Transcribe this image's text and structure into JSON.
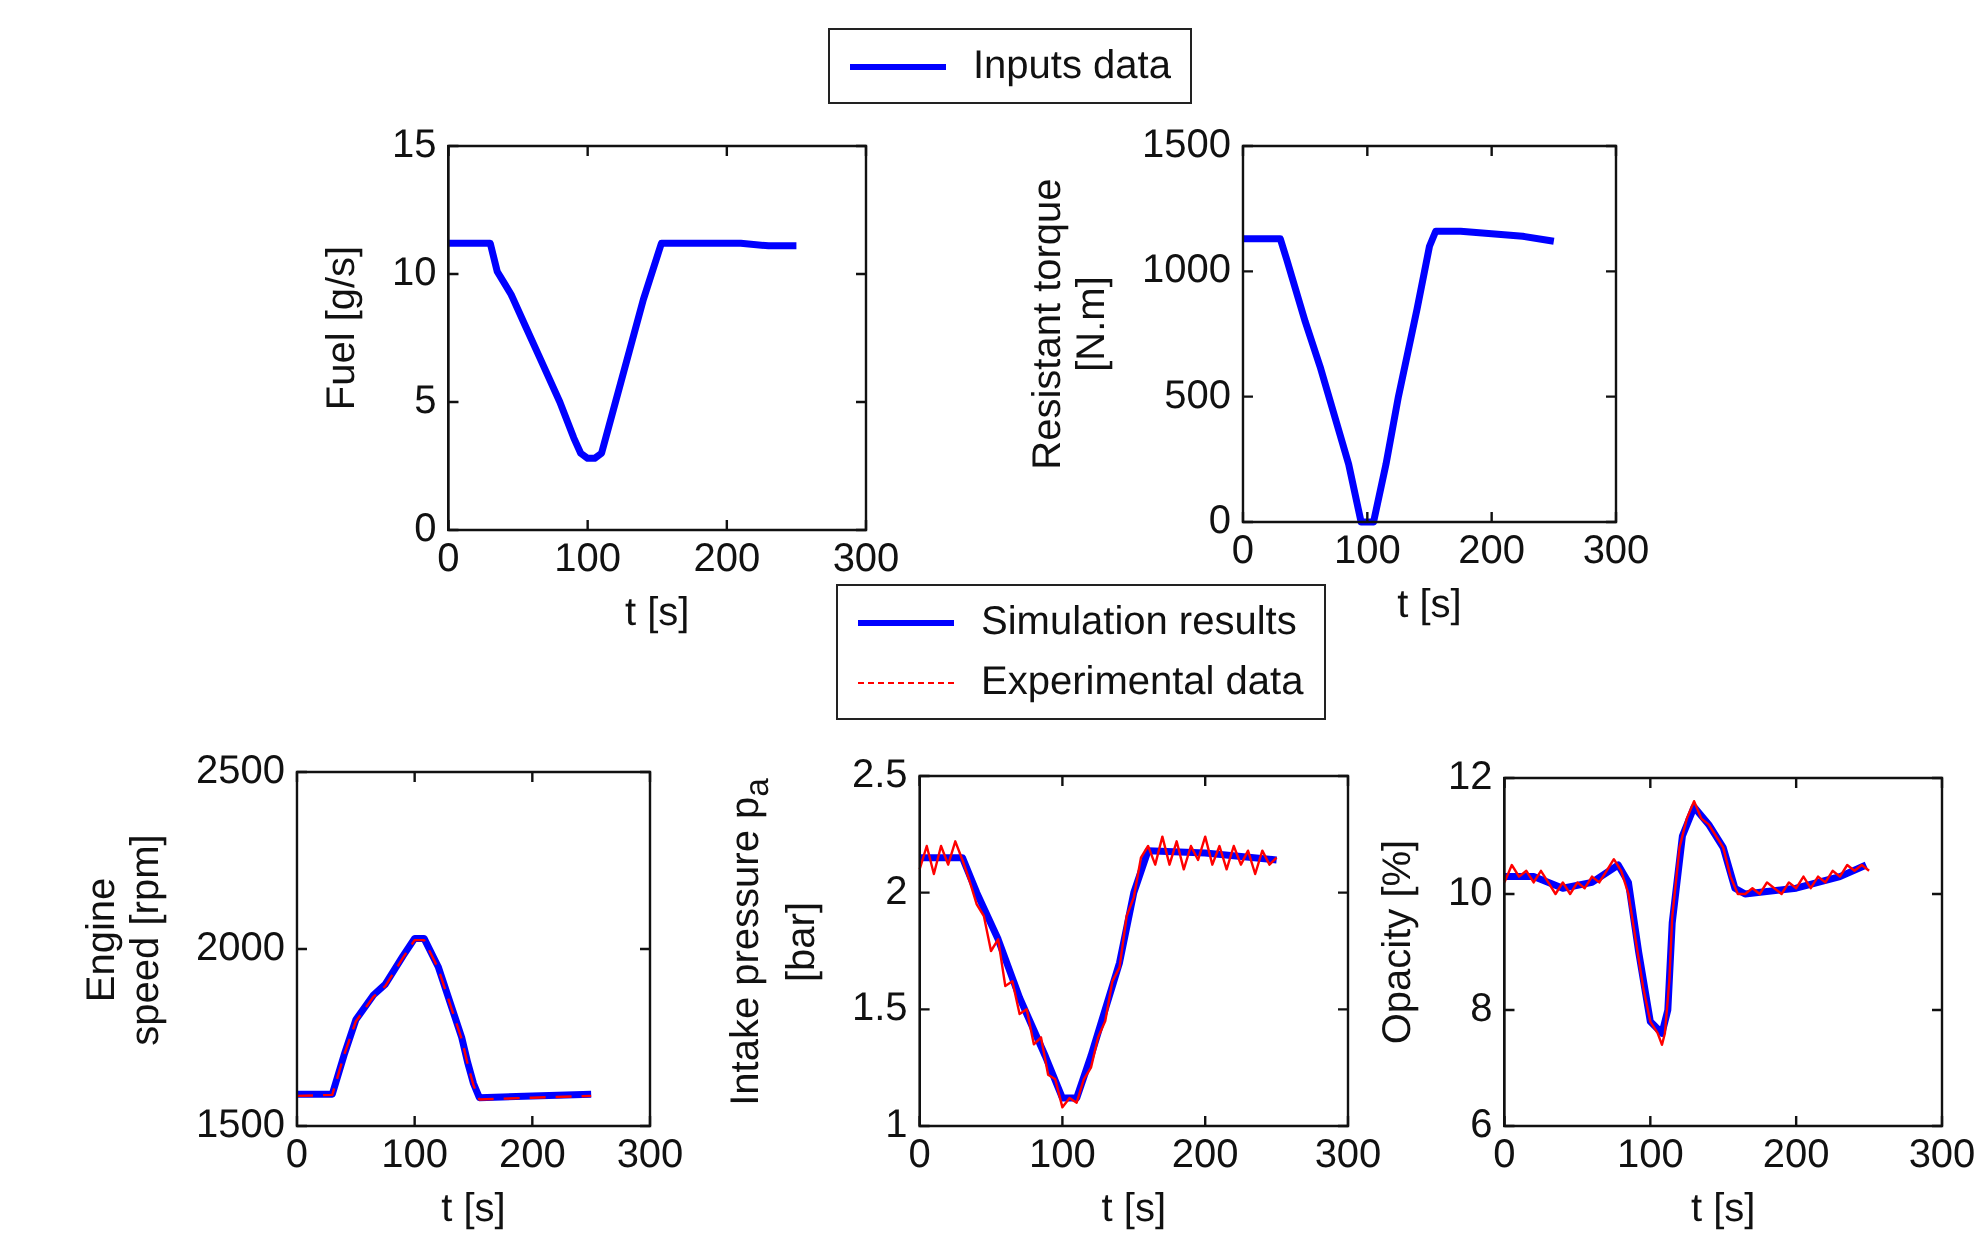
{
  "chart_data": [
    {
      "type": "line",
      "xlabel": "t [s]",
      "ylabel": "Fuel [g/s]",
      "xlim": [
        0,
        300
      ],
      "xticks": [
        0,
        100,
        200,
        300
      ],
      "ylim": [
        0,
        15
      ],
      "yticks": [
        0,
        5,
        10,
        15
      ],
      "grid": false,
      "legend": "top",
      "marker": "none",
      "series": [
        {
          "name": "Inputs data",
          "color": "#0000ff",
          "line_style": "solid",
          "x": [
            0,
            30,
            35,
            45,
            55,
            65,
            80,
            90,
            95,
            100,
            105,
            110,
            120,
            130,
            140,
            153,
            180,
            210,
            230,
            250
          ],
          "values": [
            11.2,
            11.2,
            10.1,
            9.2,
            8,
            6.8,
            5,
            3.6,
            3,
            2.8,
            2.8,
            3,
            5,
            7,
            9,
            11.2,
            11.2,
            11.2,
            11.1,
            11.1
          ]
        }
      ]
    },
    {
      "type": "line",
      "xlabel": "t [s]",
      "ylabel": "Resistant torque [N.m]",
      "xlim": [
        0,
        300
      ],
      "xticks": [
        0,
        100,
        200,
        300
      ],
      "ylim": [
        0,
        1500
      ],
      "yticks": [
        0,
        500,
        1000,
        1500
      ],
      "grid": false,
      "marker": "none",
      "series": [
        {
          "color": "#0000ff",
          "line_style": "solid",
          "x": [
            0,
            30,
            35,
            50,
            62,
            75,
            85,
            95,
            105,
            115,
            125,
            140,
            150,
            155,
            175,
            200,
            225,
            250
          ],
          "values": [
            1130,
            1130,
            1050,
            800,
            620,
            400,
            230,
            0,
            0,
            230,
            500,
            850,
            1100,
            1160,
            1160,
            1150,
            1140,
            1120
          ]
        }
      ]
    },
    {
      "type": "line",
      "xlabel": "t [s]",
      "ylabel": "Engine speed [rpm]",
      "xlim": [
        0,
        300
      ],
      "xticks": [
        0,
        100,
        200,
        300
      ],
      "ylim": [
        1500,
        2500
      ],
      "yticks": [
        1500,
        2000,
        2500
      ],
      "grid": false,
      "legend": "top",
      "marker": "none",
      "series": [
        {
          "name": "Simulation results",
          "color": "#0000ff",
          "line_style": "solid",
          "x": [
            0,
            30,
            40,
            50,
            65,
            75,
            90,
            100,
            108,
            120,
            130,
            140,
            145,
            150,
            155,
            200,
            250
          ],
          "values": [
            1590,
            1590,
            1700,
            1800,
            1870,
            1900,
            1980,
            2030,
            2030,
            1950,
            1850,
            1750,
            1680,
            1620,
            1580,
            1585,
            1590
          ]
        },
        {
          "name": "Experimental data",
          "color": "#ff0000",
          "line_style": "dashed",
          "x": [
            0,
            30,
            40,
            50,
            65,
            75,
            90,
            100,
            108,
            120,
            130,
            140,
            145,
            150,
            155,
            200,
            250
          ],
          "values": [
            1585,
            1588,
            1700,
            1795,
            1865,
            1895,
            1975,
            2025,
            2025,
            1945,
            1845,
            1745,
            1675,
            1615,
            1575,
            1580,
            1585
          ]
        }
      ]
    },
    {
      "type": "line",
      "xlabel": "t [s]",
      "ylabel": "Intake pressure p$_{a}$ [bar]",
      "xlim": [
        0,
        300
      ],
      "xticks": [
        0,
        100,
        200,
        300
      ],
      "ylim": [
        1,
        2.5
      ],
      "yticks": [
        1,
        1.5,
        2,
        2.5
      ],
      "grid": false,
      "marker": "none",
      "series": [
        {
          "color": "#0000ff",
          "line_style": "solid",
          "x": [
            0,
            30,
            40,
            55,
            70,
            88,
            100,
            110,
            120,
            140,
            150,
            160,
            200,
            250
          ],
          "values": [
            2.15,
            2.15,
            2,
            1.8,
            1.55,
            1.3,
            1.12,
            1.12,
            1.3,
            1.7,
            2,
            2.18,
            2.17,
            2.14
          ]
        },
        {
          "color": "#ff0000",
          "line_style": "solid",
          "x": [
            0,
            5,
            10,
            15,
            20,
            25,
            30,
            35,
            40,
            45,
            50,
            55,
            60,
            65,
            70,
            75,
            80,
            85,
            90,
            95,
            100,
            105,
            110,
            115,
            120,
            125,
            130,
            135,
            140,
            145,
            150,
            155,
            160,
            165,
            170,
            175,
            180,
            185,
            190,
            195,
            200,
            205,
            210,
            215,
            220,
            225,
            230,
            235,
            240,
            245,
            250
          ],
          "values": [
            2.1,
            2.2,
            2.08,
            2.2,
            2.12,
            2.22,
            2.14,
            2.05,
            1.95,
            1.9,
            1.75,
            1.8,
            1.6,
            1.62,
            1.48,
            1.5,
            1.35,
            1.38,
            1.22,
            1.2,
            1.08,
            1.12,
            1.1,
            1.2,
            1.25,
            1.38,
            1.45,
            1.62,
            1.68,
            1.9,
            1.98,
            2.15,
            2.2,
            2.12,
            2.24,
            2.12,
            2.22,
            2.1,
            2.2,
            2.14,
            2.24,
            2.12,
            2.2,
            2.1,
            2.2,
            2.12,
            2.18,
            2.08,
            2.18,
            2.12,
            2.15
          ]
        }
      ]
    },
    {
      "type": "line",
      "xlabel": "t [s]",
      "ylabel": "Opacity [%]",
      "xlim": [
        0,
        300
      ],
      "xticks": [
        0,
        100,
        200,
        300
      ],
      "ylim": [
        6,
        12
      ],
      "yticks": [
        6,
        8,
        10,
        12
      ],
      "grid": false,
      "marker": "none",
      "series": [
        {
          "color": "#0000ff",
          "line_style": "solid",
          "x": [
            0,
            20,
            40,
            60,
            78,
            85,
            92,
            100,
            108,
            112,
            115,
            122,
            130,
            140,
            150,
            158,
            165,
            200,
            230,
            248
          ],
          "values": [
            10.3,
            10.3,
            10.1,
            10.2,
            10.5,
            10.2,
            9,
            7.8,
            7.6,
            8,
            9.5,
            11,
            11.5,
            11.2,
            10.8,
            10.1,
            10,
            10.1,
            10.3,
            10.5
          ]
        },
        {
          "color": "#ff0000",
          "line_style": "solid",
          "x": [
            0,
            5,
            10,
            15,
            20,
            25,
            30,
            35,
            40,
            45,
            50,
            55,
            60,
            65,
            70,
            75,
            80,
            85,
            90,
            95,
            100,
            105,
            108,
            110,
            113,
            115,
            120,
            125,
            130,
            135,
            140,
            145,
            150,
            155,
            160,
            165,
            170,
            175,
            180,
            185,
            190,
            195,
            200,
            205,
            210,
            215,
            220,
            225,
            230,
            235,
            240,
            245,
            250
          ],
          "values": [
            10.2,
            10.5,
            10.3,
            10.4,
            10.2,
            10.4,
            10.2,
            10,
            10.2,
            10,
            10.2,
            10.1,
            10.3,
            10.2,
            10.4,
            10.6,
            10.4,
            10,
            9.2,
            8.4,
            7.8,
            7.6,
            7.4,
            7.6,
            8.5,
            9.6,
            10.8,
            11.3,
            11.6,
            11.3,
            11.2,
            11,
            10.8,
            10.3,
            10,
            10,
            10.1,
            10,
            10.2,
            10.1,
            10,
            10.2,
            10.1,
            10.3,
            10.1,
            10.3,
            10.2,
            10.4,
            10.3,
            10.5,
            10.4,
            10.5,
            10.4
          ]
        }
      ]
    }
  ]
}
